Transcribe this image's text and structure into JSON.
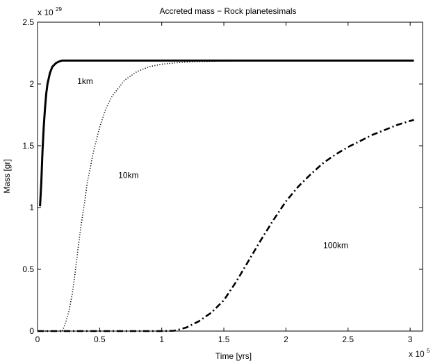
{
  "chart_data": {
    "type": "line",
    "title": "Accreted mass − Rock planetesimals",
    "xlabel": "Time [yrs]",
    "ylabel": "Mass [gr]",
    "x_multiplier": "x 10",
    "x_exponent": "5",
    "y_multiplier": "x 10",
    "y_exponent": "29",
    "xlim": [
      0,
      3.1
    ],
    "ylim": [
      0,
      2.5
    ],
    "xticks": [
      "0",
      "0.5",
      "1",
      "1.5",
      "2",
      "2.5",
      "3"
    ],
    "yticks": [
      "0",
      "0.5",
      "1",
      "1.5",
      "2",
      "2.5"
    ],
    "series": [
      {
        "name": "1km",
        "style": "solid",
        "x": [
          0.02,
          0.03,
          0.04,
          0.05,
          0.06,
          0.07,
          0.08,
          0.1,
          0.12,
          0.15,
          0.18,
          0.2,
          0.25,
          0.3,
          0.4,
          0.6,
          1.0,
          1.5,
          2.0,
          2.5,
          3.03
        ],
        "y": [
          1.01,
          1.2,
          1.45,
          1.65,
          1.8,
          1.92,
          2.0,
          2.09,
          2.14,
          2.17,
          2.185,
          2.19,
          2.19,
          2.19,
          2.19,
          2.19,
          2.19,
          2.19,
          2.19,
          2.19,
          2.19
        ]
      },
      {
        "name": "10km",
        "style": "dotted",
        "x": [
          0.0,
          0.2,
          0.22,
          0.25,
          0.28,
          0.3,
          0.33,
          0.35,
          0.38,
          0.4,
          0.45,
          0.5,
          0.55,
          0.6,
          0.7,
          0.8,
          0.9,
          1.0,
          1.1,
          1.2,
          1.3,
          1.45,
          1.6,
          1.8,
          3.03
        ],
        "y": [
          0.0,
          0.0,
          0.05,
          0.15,
          0.3,
          0.45,
          0.7,
          0.85,
          1.05,
          1.2,
          1.45,
          1.65,
          1.8,
          1.9,
          2.03,
          2.1,
          2.14,
          2.16,
          2.17,
          2.178,
          2.182,
          2.185,
          2.187,
          2.188,
          2.19
        ]
      },
      {
        "name": "100km",
        "style": "dashdot",
        "x": [
          0.0,
          1.0,
          1.1,
          1.15,
          1.2,
          1.3,
          1.4,
          1.5,
          1.6,
          1.7,
          1.8,
          1.9,
          2.0,
          2.1,
          2.2,
          2.3,
          2.4,
          2.5,
          2.6,
          2.7,
          2.8,
          2.9,
          3.03
        ],
        "y": [
          0.0,
          0.0,
          0.003,
          0.015,
          0.03,
          0.08,
          0.15,
          0.25,
          0.4,
          0.57,
          0.74,
          0.9,
          1.05,
          1.17,
          1.27,
          1.36,
          1.43,
          1.49,
          1.54,
          1.59,
          1.63,
          1.67,
          1.71
        ]
      }
    ],
    "annotations": [
      {
        "text": "1km",
        "x": 0.32,
        "y": 2.0
      },
      {
        "text": "10km",
        "x": 0.65,
        "y": 1.24
      },
      {
        "text": "100km",
        "x": 2.3,
        "y": 0.67
      }
    ]
  }
}
